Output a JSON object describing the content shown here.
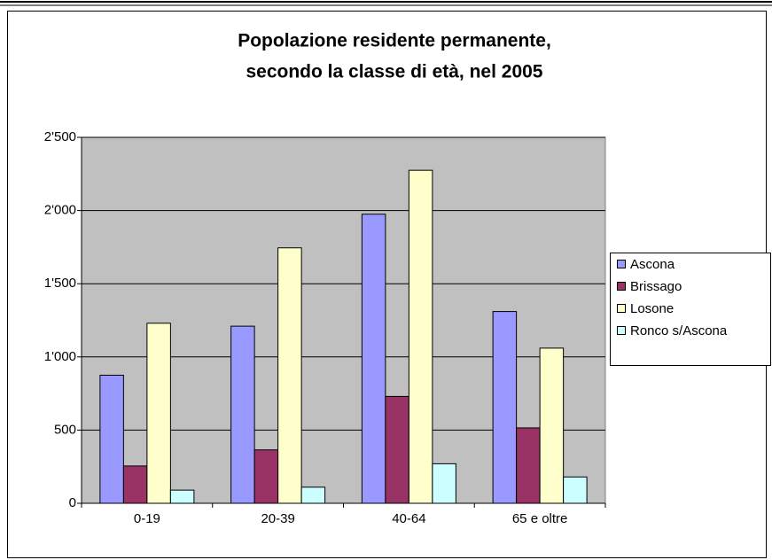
{
  "chart_data": {
    "type": "bar",
    "title": [
      "Popolazione residente permanente,",
      "secondo la classe di età, nel 2005"
    ],
    "categories": [
      "0-19",
      "20-39",
      "40-64",
      "65 e oltre"
    ],
    "series": [
      {
        "name": "Ascona",
        "color": "#9999ff",
        "values": [
          875,
          1210,
          1975,
          1310
        ]
      },
      {
        "name": "Brissago",
        "color": "#993366",
        "values": [
          255,
          365,
          730,
          515
        ]
      },
      {
        "name": "Losone",
        "color": "#ffffcc",
        "values": [
          1230,
          1745,
          2275,
          1060
        ]
      },
      {
        "name": "Ronco s/Ascona",
        "color": "#ccffff",
        "values": [
          90,
          110,
          270,
          180
        ]
      }
    ],
    "ylim": [
      0,
      2500
    ],
    "yticks": [
      0,
      500,
      {
        "value": 1000,
        "label": "1'000"
      },
      {
        "value": 1500,
        "label": "1'500"
      },
      {
        "value": 2000,
        "label": "2'000"
      },
      {
        "value": 2500,
        "label": "2'500"
      }
    ],
    "grid": true,
    "legend": "right",
    "plot_background": "#c0c0c0"
  }
}
